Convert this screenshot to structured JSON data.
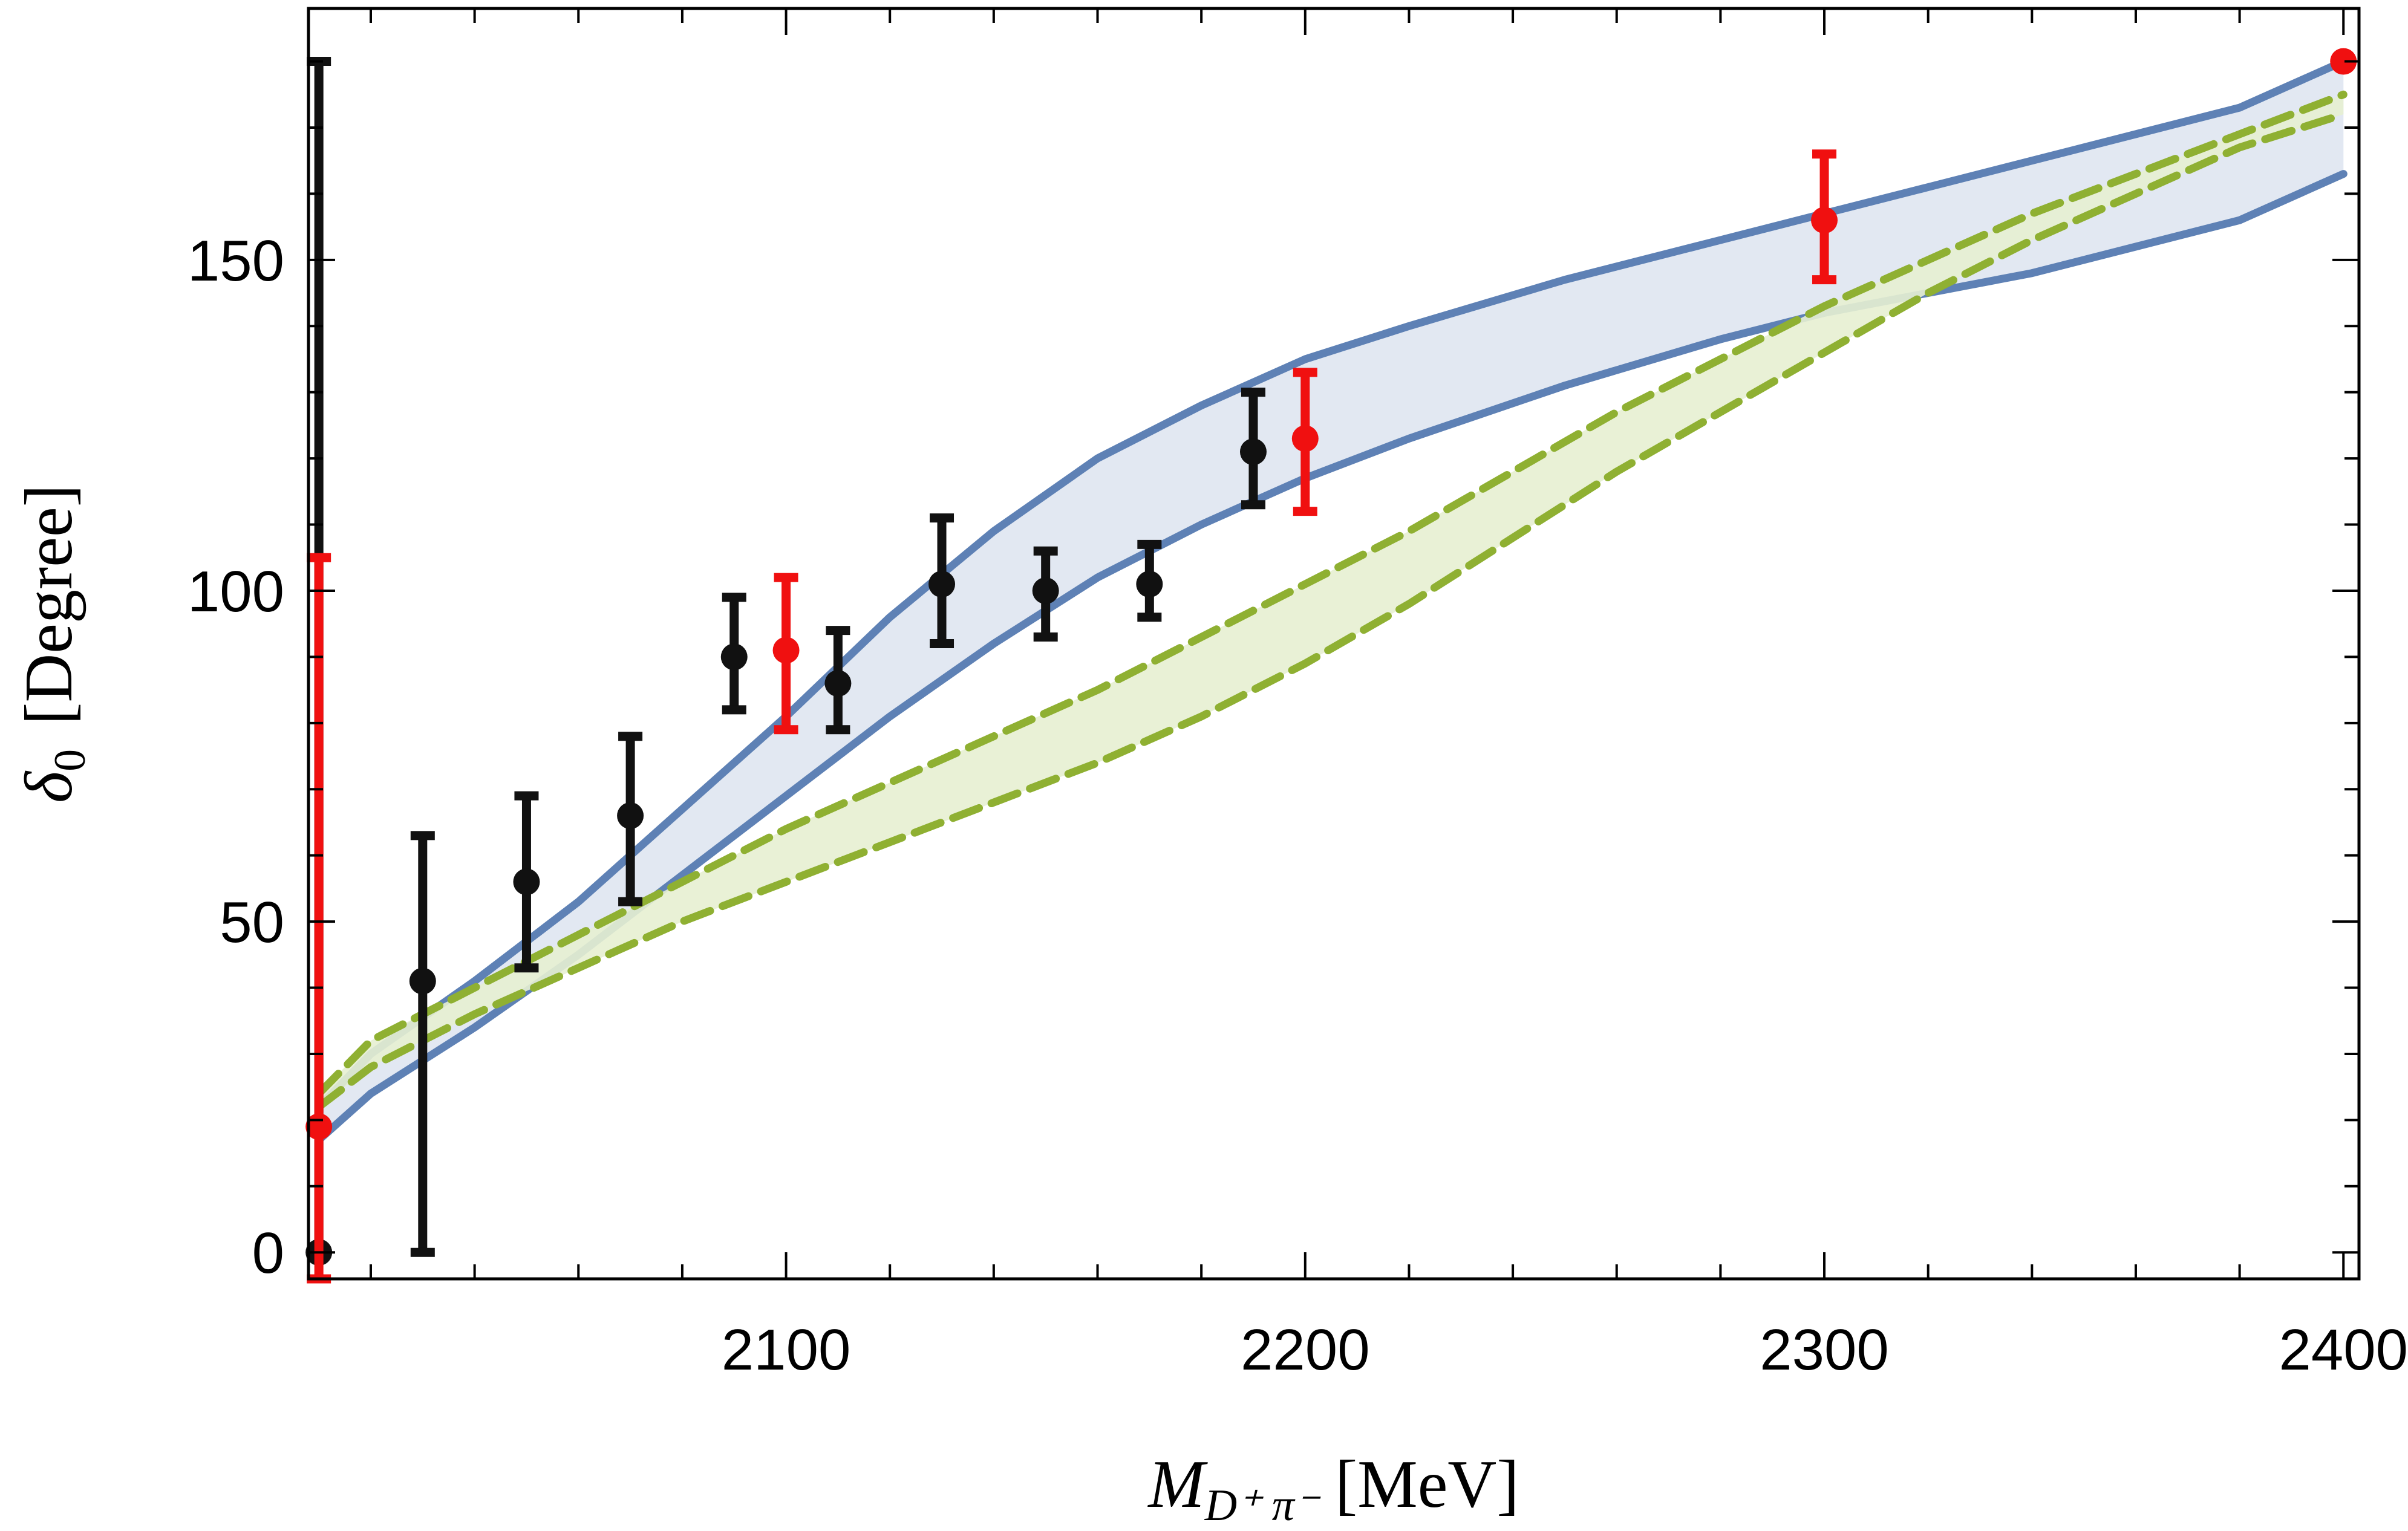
{
  "chart_data": {
    "type": "scatter",
    "xlabel": {
      "main": "M",
      "sub": "D⁺ π⁻",
      "unit": "[MeV]"
    },
    "ylabel": {
      "main": "δ",
      "sub": "0",
      "unit": "[Degree]"
    },
    "xlim": [
      2008,
      2403
    ],
    "ylim": [
      -4,
      188
    ],
    "x_ticks": [
      2100,
      2200,
      2300,
      2400
    ],
    "y_ticks": [
      0,
      50,
      100,
      150
    ],
    "grid": false,
    "colors": {
      "black_points": "#111111",
      "red_points": "#f01010",
      "blue_band_line": "#5e81b5",
      "blue_band_fill": "#dfe6f1",
      "green_band_line": "#8fb032",
      "green_band_fill": "#e7efd2"
    },
    "series": [
      {
        "kind": "errorbar",
        "color_key": "black_points",
        "points": [
          {
            "x": 2010,
            "y": 0,
            "lo": 0,
            "hi": 180
          },
          {
            "x": 2030,
            "y": 41,
            "lo": 0,
            "hi": 63
          },
          {
            "x": 2050,
            "y": 56,
            "lo": 43,
            "hi": 69
          },
          {
            "x": 2070,
            "y": 66,
            "lo": 53,
            "hi": 78
          },
          {
            "x": 2090,
            "y": 90,
            "lo": 82,
            "hi": 99
          },
          {
            "x": 2110,
            "y": 86,
            "lo": 79,
            "hi": 94
          },
          {
            "x": 2130,
            "y": 101,
            "lo": 92,
            "hi": 111
          },
          {
            "x": 2150,
            "y": 100,
            "lo": 93,
            "hi": 106
          },
          {
            "x": 2170,
            "y": 101,
            "lo": 96,
            "hi": 107
          },
          {
            "x": 2190,
            "y": 121,
            "lo": 113,
            "hi": 130
          }
        ]
      },
      {
        "kind": "errorbar",
        "color_key": "red_points",
        "points": [
          {
            "x": 2010,
            "y": 19,
            "lo": -4,
            "hi": 105
          },
          {
            "x": 2100,
            "y": 91,
            "lo": 79,
            "hi": 102
          },
          {
            "x": 2200,
            "y": 123,
            "lo": 112,
            "hi": 133
          },
          {
            "x": 2300,
            "y": 156,
            "lo": 147,
            "hi": 166
          },
          {
            "x": 2400,
            "y": 180,
            "lo": 180,
            "hi": 180
          }
        ]
      },
      {
        "kind": "band",
        "style": "solid",
        "line_key": "blue_band_line",
        "fill_key": "blue_band_fill",
        "upper": {
          "x": [
            2010,
            2020,
            2040,
            2060,
            2080,
            2100,
            2120,
            2140,
            2160,
            2180,
            2200,
            2220,
            2250,
            2280,
            2300,
            2320,
            2350,
            2380,
            2400
          ],
          "y": [
            22,
            30,
            41,
            53,
            67,
            81,
            96,
            109,
            120,
            128,
            135,
            140,
            147,
            153,
            157,
            161,
            167,
            173,
            180
          ]
        },
        "lower": {
          "x": [
            2010,
            2020,
            2040,
            2060,
            2080,
            2100,
            2120,
            2140,
            2160,
            2180,
            2200,
            2220,
            2250,
            2280,
            2300,
            2320,
            2340,
            2360,
            2380,
            2400
          ],
          "y": [
            17,
            24,
            34,
            45,
            57,
            69,
            81,
            92,
            102,
            110,
            117,
            123,
            131,
            138,
            142,
            145,
            148,
            152,
            156,
            163
          ]
        }
      },
      {
        "kind": "band",
        "style": "dashed",
        "line_key": "green_band_line",
        "fill_key": "green_band_fill",
        "upper": {
          "x": [
            2010,
            2020,
            2040,
            2060,
            2080,
            2100,
            2120,
            2140,
            2160,
            2180,
            2200,
            2220,
            2240,
            2260,
            2280,
            2300,
            2320,
            2340,
            2360,
            2380,
            2400
          ],
          "y": [
            24,
            32,
            40,
            48,
            56,
            64,
            71,
            78,
            85,
            93,
            101,
            109,
            118,
            127,
            135,
            143,
            150,
            157,
            163,
            169,
            175
          ]
        },
        "lower": {
          "x": [
            2010,
            2020,
            2040,
            2060,
            2080,
            2100,
            2120,
            2140,
            2160,
            2180,
            2200,
            2220,
            2240,
            2260,
            2280,
            2300,
            2320,
            2340,
            2360,
            2380,
            2400
          ],
          "y": [
            22,
            28,
            36,
            43,
            50,
            56,
            62,
            68,
            74,
            81,
            89,
            98,
            108,
            118,
            127,
            136,
            145,
            153,
            160,
            167,
            172
          ]
        }
      }
    ]
  }
}
